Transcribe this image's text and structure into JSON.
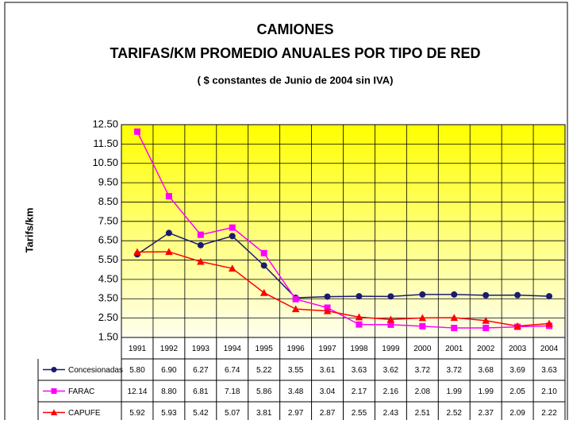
{
  "chart_data": {
    "type": "line",
    "title": "CAMIONES",
    "subtitle": "TARIFAS/KM PROMEDIO ANUALES POR TIPO DE RED",
    "note": "( $ constantes de Junio de 2004 sin IVA)",
    "y_label": "Tarifs/km",
    "categories": [
      "1991",
      "1992",
      "1993",
      "1994",
      "1995",
      "1996",
      "1997",
      "1998",
      "1999",
      "2000",
      "2001",
      "2002",
      "2003",
      "2004"
    ],
    "ylim": [
      1.5,
      12.5
    ],
    "yticks": [
      {
        "value": 1.5,
        "label": "1.50"
      },
      {
        "value": 2.5,
        "label": "2.50"
      },
      {
        "value": 3.5,
        "label": "3.50"
      },
      {
        "value": 4.5,
        "label": "4.50"
      },
      {
        "value": 5.5,
        "label": "5.50"
      },
      {
        "value": 6.5,
        "label": "6.50"
      },
      {
        "value": 7.5,
        "label": "7.50"
      },
      {
        "value": 8.5,
        "label": "8.50"
      },
      {
        "value": 9.5,
        "label": "9.50"
      },
      {
        "value": 10.5,
        "label": "10.50"
      },
      {
        "value": 11.5,
        "label": "11.50"
      },
      {
        "value": 12.5,
        "label": "12.50"
      }
    ],
    "grid": true,
    "series": [
      {
        "name": "Concesionadas",
        "color": "#1a1a6e",
        "marker": "circle",
        "values": [
          5.8,
          6.9,
          6.27,
          6.74,
          5.22,
          3.55,
          3.61,
          3.63,
          3.62,
          3.72,
          3.72,
          3.68,
          3.69,
          3.63
        ],
        "value_labels": [
          "5.80",
          "6.90",
          "6.27",
          "6.74",
          "5.22",
          "3.55",
          "3.61",
          "3.63",
          "3.62",
          "3.72",
          "3.72",
          "3.68",
          "3.69",
          "3.63"
        ]
      },
      {
        "name": "FARAC",
        "color": "#ff00ff",
        "marker": "square",
        "values": [
          12.14,
          8.8,
          6.81,
          7.18,
          5.86,
          3.48,
          3.04,
          2.17,
          2.16,
          2.08,
          1.99,
          1.99,
          2.05,
          2.1
        ],
        "value_labels": [
          "12.14",
          "8.80",
          "6.81",
          "7.18",
          "5.86",
          "3.48",
          "3.04",
          "2.17",
          "2.16",
          "2.08",
          "1.99",
          "1.99",
          "2.05",
          "2.10"
        ]
      },
      {
        "name": "CAPUFE",
        "color": "#ff0000",
        "marker": "triangle",
        "values": [
          5.92,
          5.93,
          5.42,
          5.07,
          3.81,
          2.97,
          2.87,
          2.55,
          2.43,
          2.51,
          2.52,
          2.37,
          2.09,
          2.22
        ],
        "value_labels": [
          "5.92",
          "5.93",
          "5.42",
          "5.07",
          "3.81",
          "2.97",
          "2.87",
          "2.55",
          "2.43",
          "2.51",
          "2.52",
          "2.37",
          "2.09",
          "2.22"
        ]
      }
    ]
  }
}
